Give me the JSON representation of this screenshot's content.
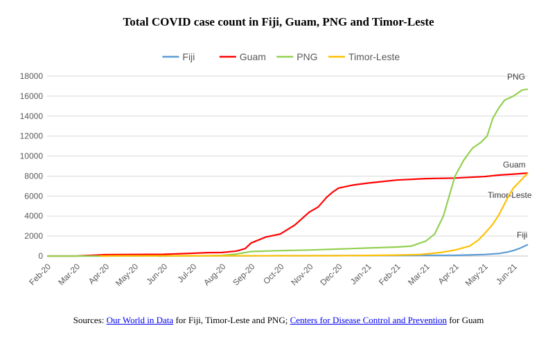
{
  "chart_data": {
    "type": "line",
    "title": "Total COVID case count in Fiji, Guam, PNG and Timor-Leste",
    "xlabel": "",
    "ylabel": "",
    "ylim": [
      0,
      18000
    ],
    "yticks": [
      0,
      2000,
      4000,
      6000,
      8000,
      10000,
      12000,
      14000,
      16000,
      18000
    ],
    "xtick_labels": [
      "Feb-20",
      "Mar-20",
      "Apr-20",
      "May-20",
      "Jun-20",
      "Jul-20",
      "Aug-20",
      "Sep-20",
      "Oct-20",
      "Nov-20",
      "Dec-20",
      "Jan-21",
      "Feb-21",
      "Mar-21",
      "Apr-21",
      "May-21",
      "Jun-21"
    ],
    "grid": true,
    "legend_position": "top",
    "series": [
      {
        "name": "Fiji",
        "label": "Fiji",
        "color": "#5b9bd5",
        "points": [
          [
            3.8,
            0
          ],
          [
            5.0,
            18
          ],
          [
            6.0,
            18
          ],
          [
            7.0,
            28
          ],
          [
            8.0,
            32
          ],
          [
            9.0,
            35
          ],
          [
            10.0,
            45
          ],
          [
            11.0,
            53
          ],
          [
            12.0,
            58
          ],
          [
            13.0,
            67
          ],
          [
            14.0,
            68
          ],
          [
            14.5,
            110
          ],
          [
            15.0,
            150
          ],
          [
            15.5,
            250
          ],
          [
            15.8,
            400
          ],
          [
            16.0,
            550
          ],
          [
            16.2,
            750
          ],
          [
            16.5,
            1150
          ]
        ]
      },
      {
        "name": "Guam",
        "label": "Guam",
        "color": "#ff0000",
        "points": [
          [
            0,
            0
          ],
          [
            1.0,
            3
          ],
          [
            2.0,
            140
          ],
          [
            3.0,
            160
          ],
          [
            4.0,
            170
          ],
          [
            5.0,
            280
          ],
          [
            5.5,
            340
          ],
          [
            6.0,
            350
          ],
          [
            6.5,
            500
          ],
          [
            6.8,
            750
          ],
          [
            7.0,
            1300
          ],
          [
            7.5,
            1900
          ],
          [
            8.0,
            2200
          ],
          [
            8.5,
            3100
          ],
          [
            9.0,
            4400
          ],
          [
            9.3,
            4900
          ],
          [
            9.6,
            5900
          ],
          [
            9.8,
            6400
          ],
          [
            10.0,
            6800
          ],
          [
            10.5,
            7100
          ],
          [
            11.0,
            7300
          ],
          [
            11.5,
            7450
          ],
          [
            12.0,
            7600
          ],
          [
            13.0,
            7750
          ],
          [
            14.0,
            7800
          ],
          [
            15.0,
            7950
          ],
          [
            15.5,
            8100
          ],
          [
            16.0,
            8200
          ],
          [
            16.5,
            8300
          ]
        ]
      },
      {
        "name": "PNG",
        "label": "PNG",
        "color": "#92d050",
        "points": [
          [
            0,
            0
          ],
          [
            2.0,
            0
          ],
          [
            3.0,
            8
          ],
          [
            4.0,
            11
          ],
          [
            5.0,
            11
          ],
          [
            6.0,
            60
          ],
          [
            6.5,
            200
          ],
          [
            7.0,
            450
          ],
          [
            7.5,
            500
          ],
          [
            8.0,
            540
          ],
          [
            9.0,
            600
          ],
          [
            10.0,
            700
          ],
          [
            11.0,
            800
          ],
          [
            12.0,
            900
          ],
          [
            12.5,
            1000
          ],
          [
            13.0,
            1500
          ],
          [
            13.3,
            2200
          ],
          [
            13.6,
            4000
          ],
          [
            13.8,
            6000
          ],
          [
            14.0,
            8000
          ],
          [
            14.3,
            9600
          ],
          [
            14.6,
            10800
          ],
          [
            14.9,
            11400
          ],
          [
            15.1,
            12000
          ],
          [
            15.3,
            13800
          ],
          [
            15.5,
            14800
          ],
          [
            15.7,
            15600
          ],
          [
            16.0,
            16000
          ],
          [
            16.3,
            16600
          ],
          [
            16.5,
            16700
          ]
        ]
      },
      {
        "name": "Timor-Leste",
        "label": "Timor-Leste",
        "color": "#ffc000",
        "points": [
          [
            1.8,
            0
          ],
          [
            2.5,
            24
          ],
          [
            3.0,
            24
          ],
          [
            6.0,
            25
          ],
          [
            10.0,
            35
          ],
          [
            11.0,
            60
          ],
          [
            12.0,
            100
          ],
          [
            12.8,
            150
          ],
          [
            13.5,
            350
          ],
          [
            14.0,
            600
          ],
          [
            14.5,
            1000
          ],
          [
            14.8,
            1600
          ],
          [
            15.0,
            2200
          ],
          [
            15.3,
            3200
          ],
          [
            15.5,
            4100
          ],
          [
            15.8,
            5800
          ],
          [
            16.0,
            6800
          ],
          [
            16.2,
            7400
          ],
          [
            16.4,
            8000
          ],
          [
            16.5,
            8300
          ]
        ]
      }
    ]
  },
  "source": {
    "prefix": "Sources: ",
    "link1": "Our World in Data",
    "middle": " for Fiji, Timor-Leste and PNG; ",
    "link2": "Centers for Disease Control and Prevention",
    "suffix": " for Guam"
  }
}
